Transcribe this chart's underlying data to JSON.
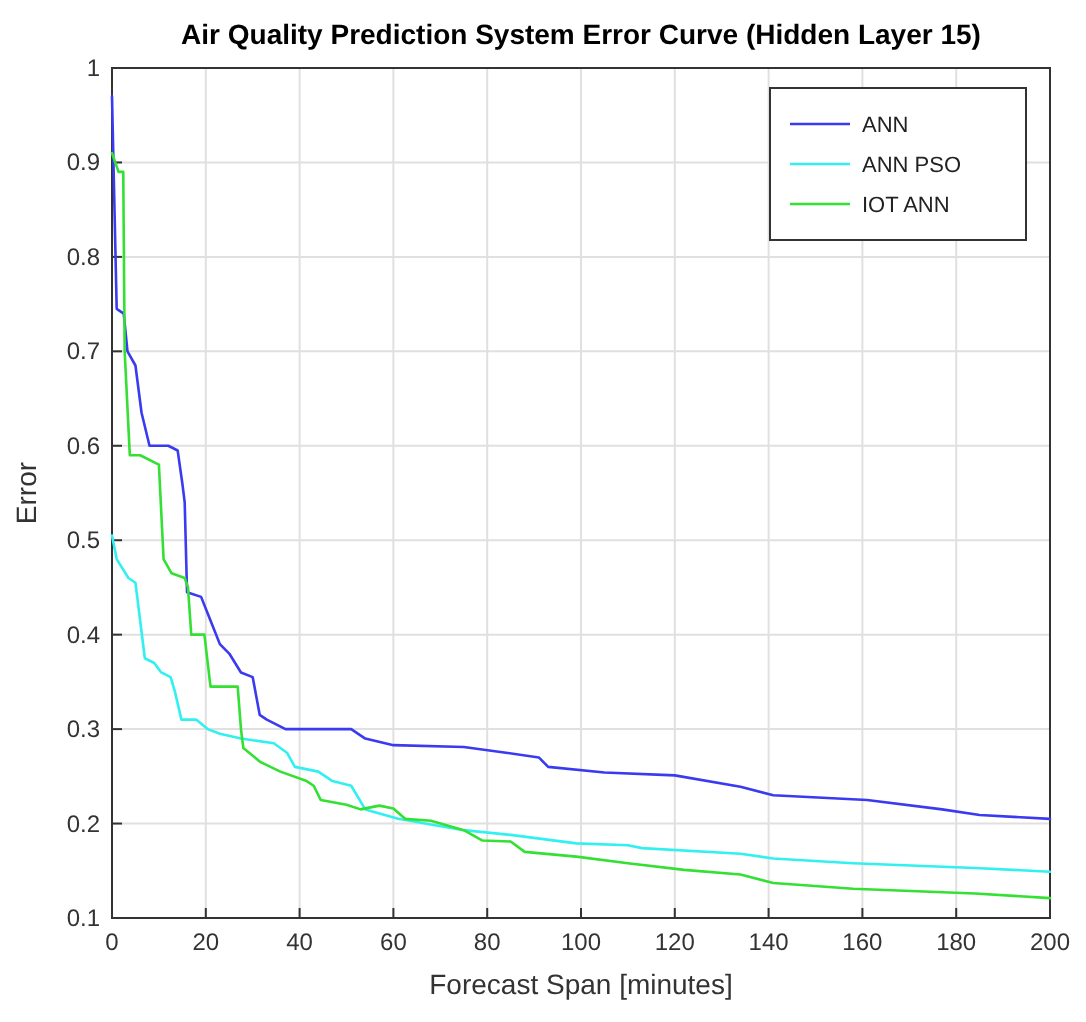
{
  "chart_data": {
    "type": "line",
    "title": "Air Quality Prediction System Error Curve (Hidden Layer 15)",
    "xlabel": "Forecast Span [minutes]",
    "ylabel": "Error",
    "xlim": [
      0,
      200
    ],
    "ylim": [
      0.1,
      1
    ],
    "xticks": [
      0,
      20,
      40,
      60,
      80,
      100,
      120,
      140,
      160,
      180,
      200
    ],
    "yticks": [
      0.1,
      0.2,
      0.3,
      0.4,
      0.5,
      0.6,
      0.7,
      0.8,
      0.9,
      1
    ],
    "grid": true,
    "legend": "top right",
    "line_style": "solid",
    "marker": "none",
    "series": [
      {
        "name": "ANN",
        "color": "#3a3af0",
        "x": [
          0,
          1,
          2.5,
          3.3,
          5,
          6.3,
          8,
          12,
          14,
          15,
          15.5,
          16,
          19,
          21,
          23,
          25,
          27.5,
          30,
          31.5,
          33,
          37,
          51,
          54,
          60,
          75,
          84,
          91,
          93,
          105,
          120,
          134,
          141,
          161,
          177,
          185,
          200
        ],
        "values": [
          0.97,
          0.745,
          0.74,
          0.7,
          0.685,
          0.635,
          0.6,
          0.6,
          0.595,
          0.56,
          0.54,
          0.445,
          0.44,
          0.415,
          0.39,
          0.38,
          0.36,
          0.355,
          0.315,
          0.31,
          0.3,
          0.3,
          0.29,
          0.283,
          0.281,
          0.275,
          0.27,
          0.26,
          0.254,
          0.251,
          0.239,
          0.23,
          0.225,
          0.215,
          0.209,
          0.205
        ]
      },
      {
        "name": "ANN PSO",
        "color": "#33f0f0",
        "x": [
          0,
          1,
          3.5,
          5,
          7,
          9,
          10.5,
          12.5,
          13.4,
          14.8,
          18,
          20.4,
          23,
          27.5,
          34.5,
          37.3,
          39,
          44,
          47,
          51,
          54,
          61,
          75,
          85,
          99,
          110,
          113,
          134,
          141,
          158,
          184,
          200
        ],
        "values": [
          0.505,
          0.48,
          0.46,
          0.455,
          0.375,
          0.37,
          0.36,
          0.355,
          0.34,
          0.31,
          0.31,
          0.3,
          0.295,
          0.29,
          0.285,
          0.275,
          0.26,
          0.255,
          0.245,
          0.24,
          0.215,
          0.205,
          0.193,
          0.188,
          0.179,
          0.177,
          0.174,
          0.168,
          0.163,
          0.158,
          0.153,
          0.149
        ]
      },
      {
        "name": "IOT ANN",
        "color": "#33e033",
        "x": [
          0,
          1.4,
          2.4,
          2.7,
          3.8,
          6,
          10,
          11,
          12.7,
          15.5,
          16.2,
          16.9,
          19.7,
          21,
          26.8,
          27.5,
          28,
          31.7,
          35.9,
          41.5,
          43,
          44.5,
          50,
          53,
          57,
          60,
          62.5,
          68,
          75,
          79,
          85,
          88,
          99,
          110,
          122,
          134,
          141,
          158,
          184,
          200
        ],
        "values": [
          0.91,
          0.89,
          0.89,
          0.7,
          0.59,
          0.59,
          0.58,
          0.48,
          0.465,
          0.46,
          0.45,
          0.4,
          0.4,
          0.345,
          0.345,
          0.3,
          0.28,
          0.265,
          0.255,
          0.245,
          0.24,
          0.225,
          0.22,
          0.215,
          0.219,
          0.216,
          0.205,
          0.203,
          0.193,
          0.182,
          0.181,
          0.17,
          0.165,
          0.158,
          0.151,
          0.146,
          0.137,
          0.131,
          0.126,
          0.121
        ]
      }
    ]
  }
}
